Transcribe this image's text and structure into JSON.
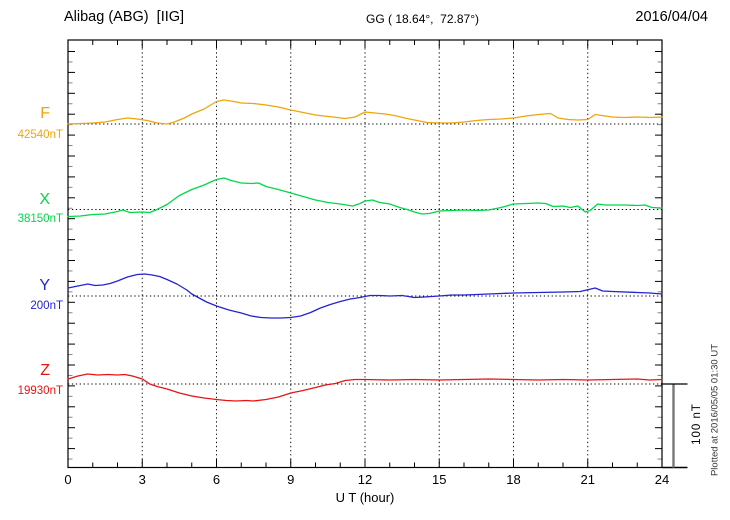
{
  "header": {
    "station": "Alibag (ABG)  [IIG]",
    "coords": "GG ( 18.64°,  72.87°)",
    "date": "2016/04/04"
  },
  "axis": {
    "ut_label": "U T (hour)"
  },
  "scale_bar": {
    "label": "100 nT"
  },
  "footer": {
    "plotted_at": "Plotted at 2016/05/05 01:30 UT"
  },
  "chart_data": {
    "type": "line",
    "title": "Alibag (ABG) [IIG] magnetogram 2016/04/04",
    "xlabel": "U T (hour)",
    "x_range": [
      0,
      24
    ],
    "x_ticks": [
      0,
      3,
      6,
      9,
      12,
      15,
      18,
      21,
      24
    ],
    "grid": "dotted vertical gridlines every 3 h; dotted horizontal baseline per trace",
    "legend_position": "left margin, one colored label per trace",
    "scale_bar_nT": 100,
    "series": [
      {
        "name": "F",
        "base_value": "42540nT",
        "color": "#f0a50a",
        "units": "nT offset from base value",
        "points": [
          [
            0,
            0
          ],
          [
            0.5,
            0.6
          ],
          [
            1,
            1.2
          ],
          [
            1.5,
            2.4
          ],
          [
            2,
            5.4
          ],
          [
            2.4,
            7.1
          ],
          [
            2.8,
            6
          ],
          [
            3.2,
            4.2
          ],
          [
            3.6,
            1.2
          ],
          [
            4,
            0
          ],
          [
            4.3,
            2.4
          ],
          [
            4.7,
            7.1
          ],
          [
            5,
            11.9
          ],
          [
            5.5,
            17.9
          ],
          [
            6,
            26.8
          ],
          [
            6.3,
            28.6
          ],
          [
            6.7,
            26.8
          ],
          [
            7,
            25
          ],
          [
            7.5,
            24.4
          ],
          [
            8,
            22.6
          ],
          [
            8.5,
            20.2
          ],
          [
            9,
            16.7
          ],
          [
            9.5,
            13.7
          ],
          [
            10,
            10.7
          ],
          [
            10.7,
            8.3
          ],
          [
            11.2,
            6.5
          ],
          [
            11.6,
            8.3
          ],
          [
            12,
            14.3
          ],
          [
            12.4,
            13.1
          ],
          [
            12.8,
            11.9
          ],
          [
            13.2,
            10.1
          ],
          [
            13.6,
            7.1
          ],
          [
            14,
            4.8
          ],
          [
            14.5,
            1.8
          ],
          [
            15,
            1.2
          ],
          [
            15.5,
            1.2
          ],
          [
            16,
            2.4
          ],
          [
            16.5,
            4.2
          ],
          [
            17,
            5.4
          ],
          [
            17.5,
            6
          ],
          [
            18,
            7.1
          ],
          [
            18.5,
            9.5
          ],
          [
            19,
            11.3
          ],
          [
            19.5,
            12.5
          ],
          [
            19.8,
            7.1
          ],
          [
            20.2,
            5.4
          ],
          [
            20.6,
            4.8
          ],
          [
            21,
            5.4
          ],
          [
            21.3,
            11.3
          ],
          [
            21.7,
            9.5
          ],
          [
            22,
            8.3
          ],
          [
            22.5,
            7.7
          ],
          [
            23,
            8.3
          ],
          [
            23.5,
            7.7
          ],
          [
            24,
            8.3
          ]
        ]
      },
      {
        "name": "X",
        "base_value": "38150nT",
        "color": "#00d848",
        "units": "nT offset from base value",
        "points": [
          [
            0,
            -8.3
          ],
          [
            0.5,
            -7.7
          ],
          [
            1,
            -6
          ],
          [
            1.5,
            -5.4
          ],
          [
            2,
            -2.4
          ],
          [
            2.2,
            -0.6
          ],
          [
            2.5,
            -3.6
          ],
          [
            3,
            -3
          ],
          [
            3.3,
            -3.6
          ],
          [
            3.6,
            0
          ],
          [
            4,
            6
          ],
          [
            4.5,
            16.7
          ],
          [
            5,
            23.8
          ],
          [
            5.5,
            29.2
          ],
          [
            6,
            35.7
          ],
          [
            6.3,
            37.5
          ],
          [
            6.6,
            34.5
          ],
          [
            7,
            31.5
          ],
          [
            7.4,
            31
          ],
          [
            7.7,
            31.5
          ],
          [
            8,
            27.4
          ],
          [
            8.5,
            23.8
          ],
          [
            9,
            19.6
          ],
          [
            9.5,
            15.5
          ],
          [
            10,
            11.3
          ],
          [
            10.5,
            8.3
          ],
          [
            11,
            6.5
          ],
          [
            11.5,
            4.2
          ],
          [
            11.8,
            7.1
          ],
          [
            12,
            10.1
          ],
          [
            12.3,
            11.3
          ],
          [
            12.6,
            8.3
          ],
          [
            13,
            6.5
          ],
          [
            13.4,
            2.4
          ],
          [
            13.7,
            0
          ],
          [
            14,
            -3
          ],
          [
            14.3,
            -5.4
          ],
          [
            14.6,
            -4.8
          ],
          [
            15,
            -1.8
          ],
          [
            15.5,
            -1.2
          ],
          [
            16,
            -0.6
          ],
          [
            16.5,
            -1.2
          ],
          [
            17,
            -0.6
          ],
          [
            17.5,
            2.4
          ],
          [
            18,
            6.5
          ],
          [
            18.5,
            7.1
          ],
          [
            19,
            7.7
          ],
          [
            19.3,
            7.1
          ],
          [
            19.6,
            3.6
          ],
          [
            20,
            4.2
          ],
          [
            20.3,
            2.4
          ],
          [
            20.6,
            4.2
          ],
          [
            20.9,
            -3
          ],
          [
            21.1,
            -1.2
          ],
          [
            21.4,
            6.5
          ],
          [
            21.7,
            5.4
          ],
          [
            22,
            5.4
          ],
          [
            22.5,
            5.4
          ],
          [
            23,
            4.8
          ],
          [
            23.3,
            5.4
          ],
          [
            23.6,
            2.4
          ],
          [
            24,
            1.8
          ]
        ]
      },
      {
        "name": "Y",
        "base_value": "200nT",
        "color": "#2424d0",
        "units": "nT offset from base value",
        "points": [
          [
            0,
            9.5
          ],
          [
            0.4,
            11.9
          ],
          [
            0.8,
            14.3
          ],
          [
            1.1,
            12.5
          ],
          [
            1.4,
            13.1
          ],
          [
            1.7,
            14.9
          ],
          [
            2,
            17.9
          ],
          [
            2.4,
            22.6
          ],
          [
            2.8,
            25.6
          ],
          [
            3.1,
            26.2
          ],
          [
            3.4,
            25
          ],
          [
            3.7,
            23.2
          ],
          [
            4,
            19.6
          ],
          [
            4.4,
            14.3
          ],
          [
            4.8,
            7.1
          ],
          [
            5,
            2.4
          ],
          [
            5.3,
            -2.4
          ],
          [
            5.6,
            -7.1
          ],
          [
            6,
            -11.9
          ],
          [
            6.5,
            -16.7
          ],
          [
            7,
            -20.2
          ],
          [
            7.4,
            -23.8
          ],
          [
            7.8,
            -25.6
          ],
          [
            8.2,
            -26.2
          ],
          [
            8.6,
            -26.2
          ],
          [
            9,
            -25.6
          ],
          [
            9.4,
            -23.8
          ],
          [
            9.8,
            -19.6
          ],
          [
            10.2,
            -14.3
          ],
          [
            10.6,
            -10.1
          ],
          [
            11,
            -6.5
          ],
          [
            11.4,
            -3.6
          ],
          [
            11.8,
            -1.8
          ],
          [
            12.2,
            0.6
          ],
          [
            12.6,
            0.6
          ],
          [
            13,
            0
          ],
          [
            13.5,
            0.6
          ],
          [
            14,
            -1.8
          ],
          [
            14.4,
            -1.2
          ],
          [
            15,
            0
          ],
          [
            15.5,
            1.2
          ],
          [
            16,
            1.2
          ],
          [
            17,
            2.4
          ],
          [
            18,
            3.6
          ],
          [
            19,
            4.2
          ],
          [
            20,
            4.8
          ],
          [
            20.7,
            5.4
          ],
          [
            21.3,
            9.5
          ],
          [
            21.6,
            6
          ],
          [
            22,
            5.4
          ],
          [
            23,
            4.2
          ],
          [
            23.5,
            3.6
          ],
          [
            24,
            2.4
          ]
        ]
      },
      {
        "name": "Z",
        "base_value": "19930nT",
        "color": "#e71414",
        "units": "nT offset from base value",
        "points": [
          [
            0,
            6
          ],
          [
            0.4,
            9.5
          ],
          [
            0.8,
            11.9
          ],
          [
            1.2,
            10.7
          ],
          [
            1.6,
            11.3
          ],
          [
            2,
            10.7
          ],
          [
            2.3,
            11.3
          ],
          [
            2.6,
            9.5
          ],
          [
            3,
            6
          ],
          [
            3.3,
            0
          ],
          [
            3.6,
            -3
          ],
          [
            4,
            -6
          ],
          [
            4.5,
            -10.7
          ],
          [
            5,
            -14.3
          ],
          [
            5.5,
            -16.7
          ],
          [
            6,
            -18.5
          ],
          [
            6.4,
            -19.6
          ],
          [
            6.8,
            -20.2
          ],
          [
            7.2,
            -19.6
          ],
          [
            7.5,
            -20.2
          ],
          [
            8,
            -18.5
          ],
          [
            8.5,
            -15.5
          ],
          [
            9,
            -10.7
          ],
          [
            9.5,
            -7.7
          ],
          [
            10,
            -4.2
          ],
          [
            10.4,
            -1.2
          ],
          [
            10.8,
            0.6
          ],
          [
            11.2,
            4.2
          ],
          [
            11.6,
            5.4
          ],
          [
            12,
            5.4
          ],
          [
            13,
            4.8
          ],
          [
            14,
            5.4
          ],
          [
            15,
            4.8
          ],
          [
            16,
            5.4
          ],
          [
            17,
            6
          ],
          [
            18,
            5.4
          ],
          [
            19,
            4.8
          ],
          [
            20,
            5.4
          ],
          [
            21,
            4.8
          ],
          [
            22,
            5.4
          ],
          [
            23,
            6
          ],
          [
            23.5,
            4.8
          ],
          [
            24,
            5.4
          ]
        ]
      }
    ]
  }
}
